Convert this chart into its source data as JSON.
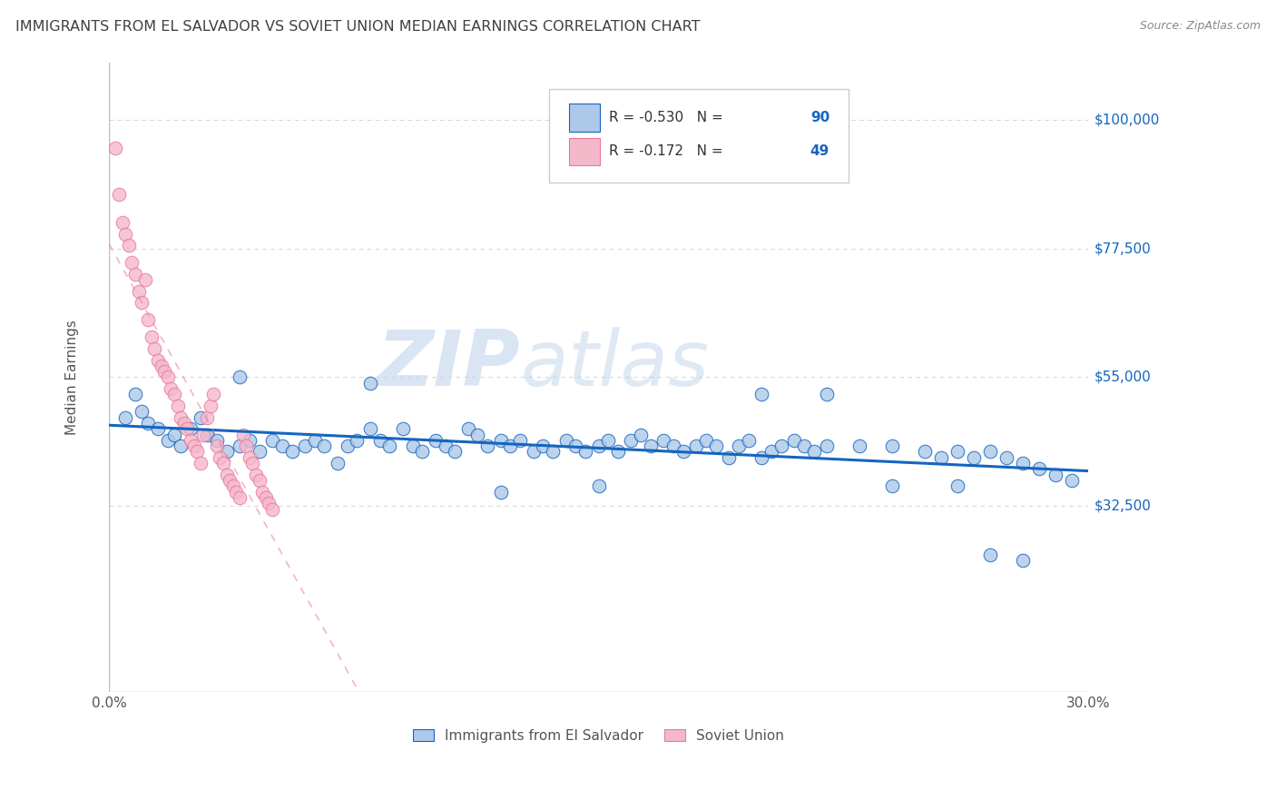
{
  "title": "IMMIGRANTS FROM EL SALVADOR VS SOVIET UNION MEDIAN EARNINGS CORRELATION CHART",
  "source": "Source: ZipAtlas.com",
  "ylabel": "Median Earnings",
  "xlim": [
    0.0,
    0.3
  ],
  "ylim": [
    0,
    110000
  ],
  "yticks": [
    0,
    32500,
    55000,
    77500,
    100000
  ],
  "ytick_labels": [
    "",
    "$32,500",
    "$55,000",
    "$77,500",
    "$100,000"
  ],
  "xticks": [
    0.0,
    0.05,
    0.1,
    0.15,
    0.2,
    0.25,
    0.3
  ],
  "legend_labels": [
    "Immigrants from El Salvador",
    "Soviet Union"
  ],
  "el_salvador_R": -0.53,
  "el_salvador_N": 90,
  "soviet_union_R": -0.172,
  "soviet_union_N": 49,
  "blue_color": "#adc8e8",
  "pink_color": "#f5b8cb",
  "blue_line_color": "#1565c0",
  "pink_line_color": "#e8799a",
  "grid_color": "#d8d8d8",
  "watermark_zip": "ZIP",
  "watermark_atlas": "atlas",
  "title_color": "#404040",
  "label_color": "#1565c0",
  "el_salvador_x": [
    0.005,
    0.008,
    0.01,
    0.012,
    0.015,
    0.018,
    0.02,
    0.022,
    0.025,
    0.028,
    0.03,
    0.033,
    0.036,
    0.04,
    0.043,
    0.046,
    0.05,
    0.053,
    0.056,
    0.06,
    0.063,
    0.066,
    0.07,
    0.073,
    0.076,
    0.08,
    0.083,
    0.086,
    0.09,
    0.093,
    0.096,
    0.1,
    0.103,
    0.106,
    0.11,
    0.113,
    0.116,
    0.12,
    0.123,
    0.126,
    0.13,
    0.133,
    0.136,
    0.14,
    0.143,
    0.146,
    0.15,
    0.153,
    0.156,
    0.16,
    0.163,
    0.166,
    0.17,
    0.173,
    0.176,
    0.18,
    0.183,
    0.186,
    0.19,
    0.193,
    0.196,
    0.2,
    0.203,
    0.206,
    0.21,
    0.213,
    0.216,
    0.22,
    0.23,
    0.24,
    0.25,
    0.255,
    0.26,
    0.265,
    0.27,
    0.275,
    0.28,
    0.285,
    0.29,
    0.295,
    0.04,
    0.08,
    0.12,
    0.15,
    0.2,
    0.22,
    0.24,
    0.26,
    0.27,
    0.28
  ],
  "el_salvador_y": [
    48000,
    52000,
    49000,
    47000,
    46000,
    44000,
    45000,
    43000,
    46000,
    48000,
    45000,
    44000,
    42000,
    43000,
    44000,
    42000,
    44000,
    43000,
    42000,
    43000,
    44000,
    43000,
    40000,
    43000,
    44000,
    46000,
    44000,
    43000,
    46000,
    43000,
    42000,
    44000,
    43000,
    42000,
    46000,
    45000,
    43000,
    44000,
    43000,
    44000,
    42000,
    43000,
    42000,
    44000,
    43000,
    42000,
    43000,
    44000,
    42000,
    44000,
    45000,
    43000,
    44000,
    43000,
    42000,
    43000,
    44000,
    43000,
    41000,
    43000,
    44000,
    41000,
    42000,
    43000,
    44000,
    43000,
    42000,
    43000,
    43000,
    43000,
    42000,
    41000,
    42000,
    41000,
    42000,
    41000,
    40000,
    39000,
    38000,
    37000,
    55000,
    54000,
    35000,
    36000,
    52000,
    52000,
    36000,
    36000,
    24000,
    23000
  ],
  "soviet_x": [
    0.002,
    0.003,
    0.004,
    0.005,
    0.006,
    0.007,
    0.008,
    0.009,
    0.01,
    0.011,
    0.012,
    0.013,
    0.014,
    0.015,
    0.016,
    0.017,
    0.018,
    0.019,
    0.02,
    0.021,
    0.022,
    0.023,
    0.024,
    0.025,
    0.026,
    0.027,
    0.028,
    0.029,
    0.03,
    0.031,
    0.032,
    0.033,
    0.034,
    0.035,
    0.036,
    0.037,
    0.038,
    0.039,
    0.04,
    0.041,
    0.042,
    0.043,
    0.044,
    0.045,
    0.046,
    0.047,
    0.048,
    0.049,
    0.05
  ],
  "soviet_y": [
    95000,
    87000,
    82000,
    80000,
    78000,
    75000,
    73000,
    70000,
    68000,
    72000,
    65000,
    62000,
    60000,
    58000,
    57000,
    56000,
    55000,
    53000,
    52000,
    50000,
    48000,
    47000,
    46000,
    44000,
    43000,
    42000,
    40000,
    45000,
    48000,
    50000,
    52000,
    43000,
    41000,
    40000,
    38000,
    37000,
    36000,
    35000,
    34000,
    45000,
    43000,
    41000,
    40000,
    38000,
    37000,
    35000,
    34000,
    33000,
    32000
  ]
}
